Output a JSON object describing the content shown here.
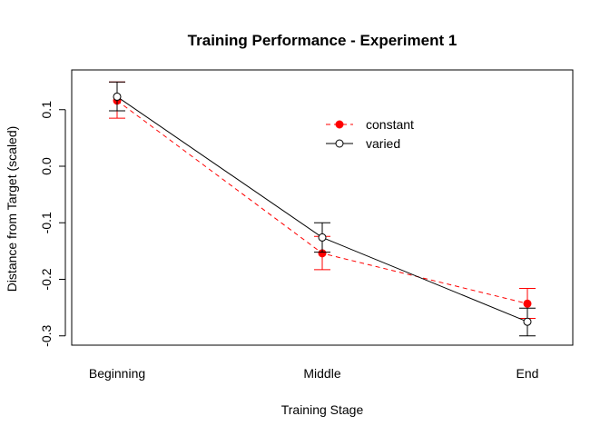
{
  "chart_data": {
    "type": "line",
    "title": "Training Performance - Experiment 1",
    "xlabel": "Training Stage",
    "ylabel": "Distance from Target (scaled)",
    "categories": [
      "Beginning",
      "Middle",
      "End"
    ],
    "ylim": [
      -0.32,
      0.15
    ],
    "yticks": [
      0.1,
      0.0,
      -0.1,
      -0.2,
      -0.3
    ],
    "ytick_labels": [
      "0.1",
      "0.0",
      "-0.1",
      "-0.2",
      "-0.3"
    ],
    "grid": false,
    "legend_position": "top-right",
    "series": [
      {
        "name": "constant",
        "color": "#ff0000",
        "line_style": "dashed",
        "marker": "filled-circle",
        "values": [
          0.116,
          -0.154,
          -0.243
        ],
        "error_low": [
          0.085,
          -0.183,
          -0.269
        ],
        "error_high": [
          0.149,
          -0.124,
          -0.216
        ]
      },
      {
        "name": "varied",
        "color": "#000000",
        "line_style": "solid",
        "marker": "open-circle",
        "values": [
          0.123,
          -0.126,
          -0.275
        ],
        "error_low": [
          0.098,
          -0.152,
          -0.3
        ],
        "error_high": [
          0.149,
          -0.1,
          -0.251
        ]
      }
    ]
  }
}
